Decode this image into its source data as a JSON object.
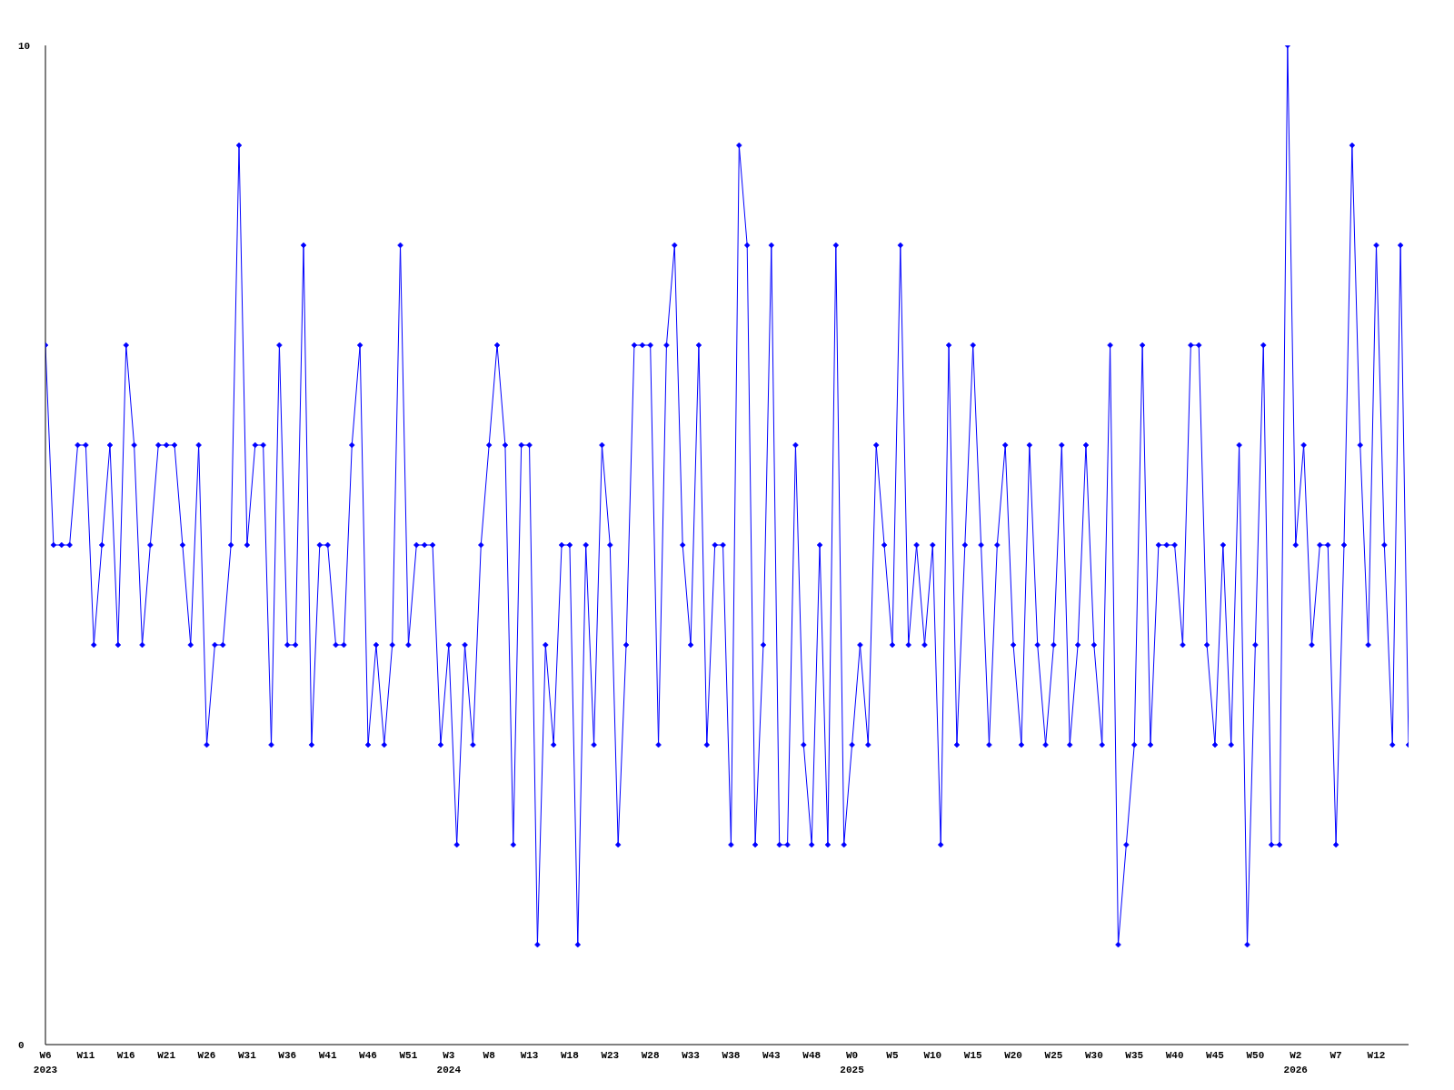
{
  "chart_data": {
    "type": "line",
    "x": [
      "2023-02-06",
      "2023-02-13",
      "2023-02-20",
      "2023-02-27",
      "2023-03-06",
      "2023-03-13",
      "2023-03-20",
      "2023-03-27",
      "2023-04-03",
      "2023-04-10",
      "2023-04-17",
      "2023-04-24",
      "2023-05-01",
      "2023-05-08",
      "2023-05-15",
      "2023-05-22",
      "2023-05-29",
      "2023-06-05",
      "2023-06-12",
      "2023-06-19",
      "2023-06-26",
      "2023-07-03",
      "2023-07-10",
      "2023-07-17",
      "2023-07-24",
      "2023-07-31",
      "2023-08-07",
      "2023-08-14",
      "2023-08-21",
      "2023-08-28",
      "2023-09-04",
      "2023-09-11",
      "2023-09-18",
      "2023-09-25",
      "2023-10-02",
      "2023-10-09",
      "2023-10-16",
      "2023-10-23",
      "2023-10-30",
      "2023-11-06",
      "2023-11-13",
      "2023-11-20",
      "2023-11-27",
      "2023-12-04",
      "2023-12-11",
      "2023-12-18",
      "2023-12-25",
      "2024-01-01",
      "2024-01-08",
      "2024-01-15",
      "2024-01-22",
      "2024-01-29",
      "2024-02-05",
      "2024-02-12",
      "2024-02-19",
      "2024-02-26",
      "2024-03-04",
      "2024-03-11",
      "2024-03-18",
      "2024-03-25",
      "2024-04-01",
      "2024-04-08",
      "2024-04-15",
      "2024-04-22",
      "2024-04-29",
      "2024-05-06",
      "2024-05-13",
      "2024-05-20",
      "2024-05-27",
      "2024-06-03",
      "2024-06-10",
      "2024-06-17",
      "2024-06-24",
      "2024-07-01",
      "2024-07-08",
      "2024-07-15",
      "2024-07-22",
      "2024-07-29",
      "2024-08-05",
      "2024-08-12",
      "2024-08-19",
      "2024-08-26",
      "2024-09-02",
      "2024-09-09",
      "2024-09-16",
      "2024-09-23",
      "2024-09-30",
      "2024-10-07",
      "2024-10-14",
      "2024-10-21",
      "2024-10-28",
      "2024-11-04",
      "2024-11-11",
      "2024-11-18",
      "2024-11-25",
      "2024-12-02",
      "2024-12-09",
      "2024-12-16",
      "2024-12-23",
      "2024-12-30",
      "2025-01-06",
      "2025-01-13",
      "2025-01-20",
      "2025-01-27",
      "2025-02-03",
      "2025-02-10",
      "2025-02-17",
      "2025-02-24",
      "2025-03-03",
      "2025-03-10",
      "2025-03-17",
      "2025-03-24",
      "2025-03-31",
      "2025-04-07",
      "2025-04-14",
      "2025-04-21",
      "2025-04-28",
      "2025-05-05",
      "2025-05-12",
      "2025-05-19",
      "2025-05-26",
      "2025-06-02",
      "2025-06-09",
      "2025-06-16",
      "2025-06-23",
      "2025-06-30",
      "2025-07-07",
      "2025-07-14",
      "2025-07-21",
      "2025-07-28",
      "2025-08-04",
      "2025-08-11",
      "2025-08-18",
      "2025-08-25",
      "2025-09-01",
      "2025-09-08",
      "2025-09-15",
      "2025-09-22",
      "2025-09-29",
      "2025-10-06",
      "2025-10-13",
      "2025-10-20",
      "2025-10-27",
      "2025-11-03",
      "2025-11-10",
      "2025-11-17",
      "2025-11-24",
      "2025-12-01",
      "2025-12-08",
      "2025-12-15",
      "2025-12-22",
      "2025-12-29",
      "2026-01-05",
      "2026-01-12",
      "2026-01-19",
      "2026-01-26",
      "2026-02-02",
      "2026-02-09",
      "2026-02-16",
      "2026-02-23",
      "2026-03-02",
      "2026-03-09",
      "2026-03-16",
      "2026-03-23",
      "2026-03-30",
      "2026-04-06",
      "2026-04-13",
      "2026-04-20",
      "2026-04-27",
      "2026-05-04"
    ],
    "series": [
      {
        "color": "#0000ff",
        "values": [
          7,
          5,
          5,
          5,
          6,
          6,
          4,
          5,
          6,
          4,
          7,
          6,
          4,
          5,
          6,
          6,
          6,
          5,
          4,
          6,
          3,
          4,
          4,
          5,
          9,
          5,
          6,
          6,
          3,
          7,
          4,
          4,
          8,
          3,
          5,
          5,
          4,
          4,
          6,
          7,
          3,
          4,
          3,
          4,
          8,
          4,
          5,
          5,
          5,
          3,
          4,
          2,
          4,
          3,
          5,
          6,
          7,
          6,
          2,
          6,
          6,
          1,
          4,
          3,
          5,
          5,
          1,
          5,
          3,
          6,
          5,
          2,
          4,
          7,
          7,
          7,
          3,
          7,
          8,
          5,
          4,
          7,
          3,
          5,
          5,
          2,
          9,
          8,
          2,
          4,
          8,
          2,
          2,
          6,
          3,
          2,
          5,
          2,
          8,
          2,
          3,
          4,
          3,
          6,
          5,
          4,
          8,
          4,
          5,
          4,
          5,
          2,
          7,
          3,
          5,
          7,
          5,
          3,
          5,
          6,
          4,
          3,
          6,
          4,
          3,
          4,
          6,
          3,
          4,
          6,
          4,
          3,
          7,
          1,
          2,
          3,
          7,
          3,
          5,
          5,
          5,
          4,
          7,
          7,
          4,
          3,
          5,
          3,
          6,
          1,
          4,
          7,
          2,
          2,
          10,
          5,
          6,
          4,
          5,
          5,
          2,
          5,
          9,
          6,
          4,
          8,
          5,
          3,
          8,
          3
        ]
      }
    ],
    "xlim": [
      "2023-02-06",
      "2026-05-04"
    ],
    "xticks": [
      {
        "value": "2023-02-06",
        "label": "W6\n2023"
      },
      {
        "value": "2023-03-13",
        "label": "W11"
      },
      {
        "value": "2023-04-17",
        "label": "W16"
      },
      {
        "value": "2023-05-22",
        "label": "W21"
      },
      {
        "value": "2023-06-26",
        "label": "W26"
      },
      {
        "value": "2023-07-31",
        "label": "W31"
      },
      {
        "value": "2023-09-04",
        "label": "W36"
      },
      {
        "value": "2023-10-09",
        "label": "W41"
      },
      {
        "value": "2023-11-13",
        "label": "W46"
      },
      {
        "value": "2023-12-18",
        "label": "W51"
      },
      {
        "value": "2024-01-22",
        "label": "W3\n2024"
      },
      {
        "value": "2024-02-26",
        "label": "W8"
      },
      {
        "value": "2024-04-01",
        "label": "W13"
      },
      {
        "value": "2024-05-06",
        "label": "W18"
      },
      {
        "value": "2024-06-10",
        "label": "W23"
      },
      {
        "value": "2024-07-15",
        "label": "W28"
      },
      {
        "value": "2024-08-19",
        "label": "W33"
      },
      {
        "value": "2024-09-23",
        "label": "W38"
      },
      {
        "value": "2024-10-28",
        "label": "W43"
      },
      {
        "value": "2024-12-02",
        "label": "W48"
      },
      {
        "value": "2025-01-06",
        "label": "W0\n2025"
      },
      {
        "value": "2025-02-10",
        "label": "W5"
      },
      {
        "value": "2025-03-17",
        "label": "W10"
      },
      {
        "value": "2025-04-21",
        "label": "W15"
      },
      {
        "value": "2025-05-26",
        "label": "W20"
      },
      {
        "value": "2025-06-30",
        "label": "W25"
      },
      {
        "value": "2025-08-04",
        "label": "W30"
      },
      {
        "value": "2025-09-08",
        "label": "W35"
      },
      {
        "value": "2025-10-13",
        "label": "W40"
      },
      {
        "value": "2025-11-17",
        "label": "W45"
      },
      {
        "value": "2025-12-22",
        "label": "W50"
      },
      {
        "value": "2026-01-26",
        "label": "W2\n2026"
      },
      {
        "value": "2026-03-02",
        "label": "W7"
      },
      {
        "value": "2026-04-06",
        "label": "W12"
      }
    ],
    "ylim": [
      0,
      10
    ],
    "yticks": [
      0,
      10
    ],
    "marker": "diamond",
    "line_style": "solid"
  }
}
